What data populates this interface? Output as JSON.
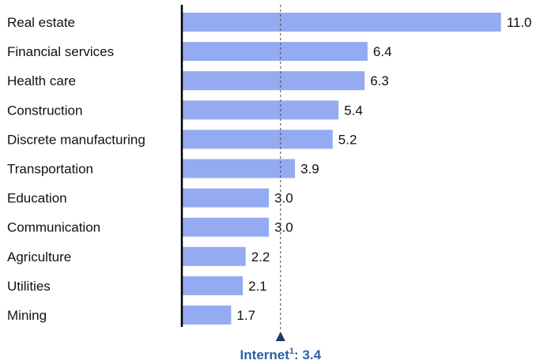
{
  "chart_data": {
    "type": "bar",
    "orientation": "horizontal",
    "categories": [
      "Real estate",
      "Financial services",
      "Health care",
      "Construction",
      "Discrete manufacturing",
      "Transportation",
      "Education",
      "Communication",
      "Agriculture",
      "Utilities",
      "Mining"
    ],
    "values": [
      11.0,
      6.4,
      6.3,
      5.4,
      5.2,
      3.9,
      3.0,
      3.0,
      2.2,
      2.1,
      1.7
    ],
    "value_labels": [
      "11.0",
      "6.4",
      "6.3",
      "5.4",
      "5.2",
      "3.9",
      "3.0",
      "3.0",
      "2.2",
      "2.1",
      "1.7"
    ],
    "xlim": [
      0,
      11.0
    ],
    "grid": false,
    "reference_line": {
      "value": 3.4,
      "label_prefix": "Internet",
      "label_sup": "1",
      "label_suffix": ": 3.4"
    },
    "colors": {
      "bar": "#94abf2",
      "axis": "#000000",
      "reference_line": "#444444",
      "reference_label": "#2a62a8",
      "marker": "#1f3864"
    }
  }
}
